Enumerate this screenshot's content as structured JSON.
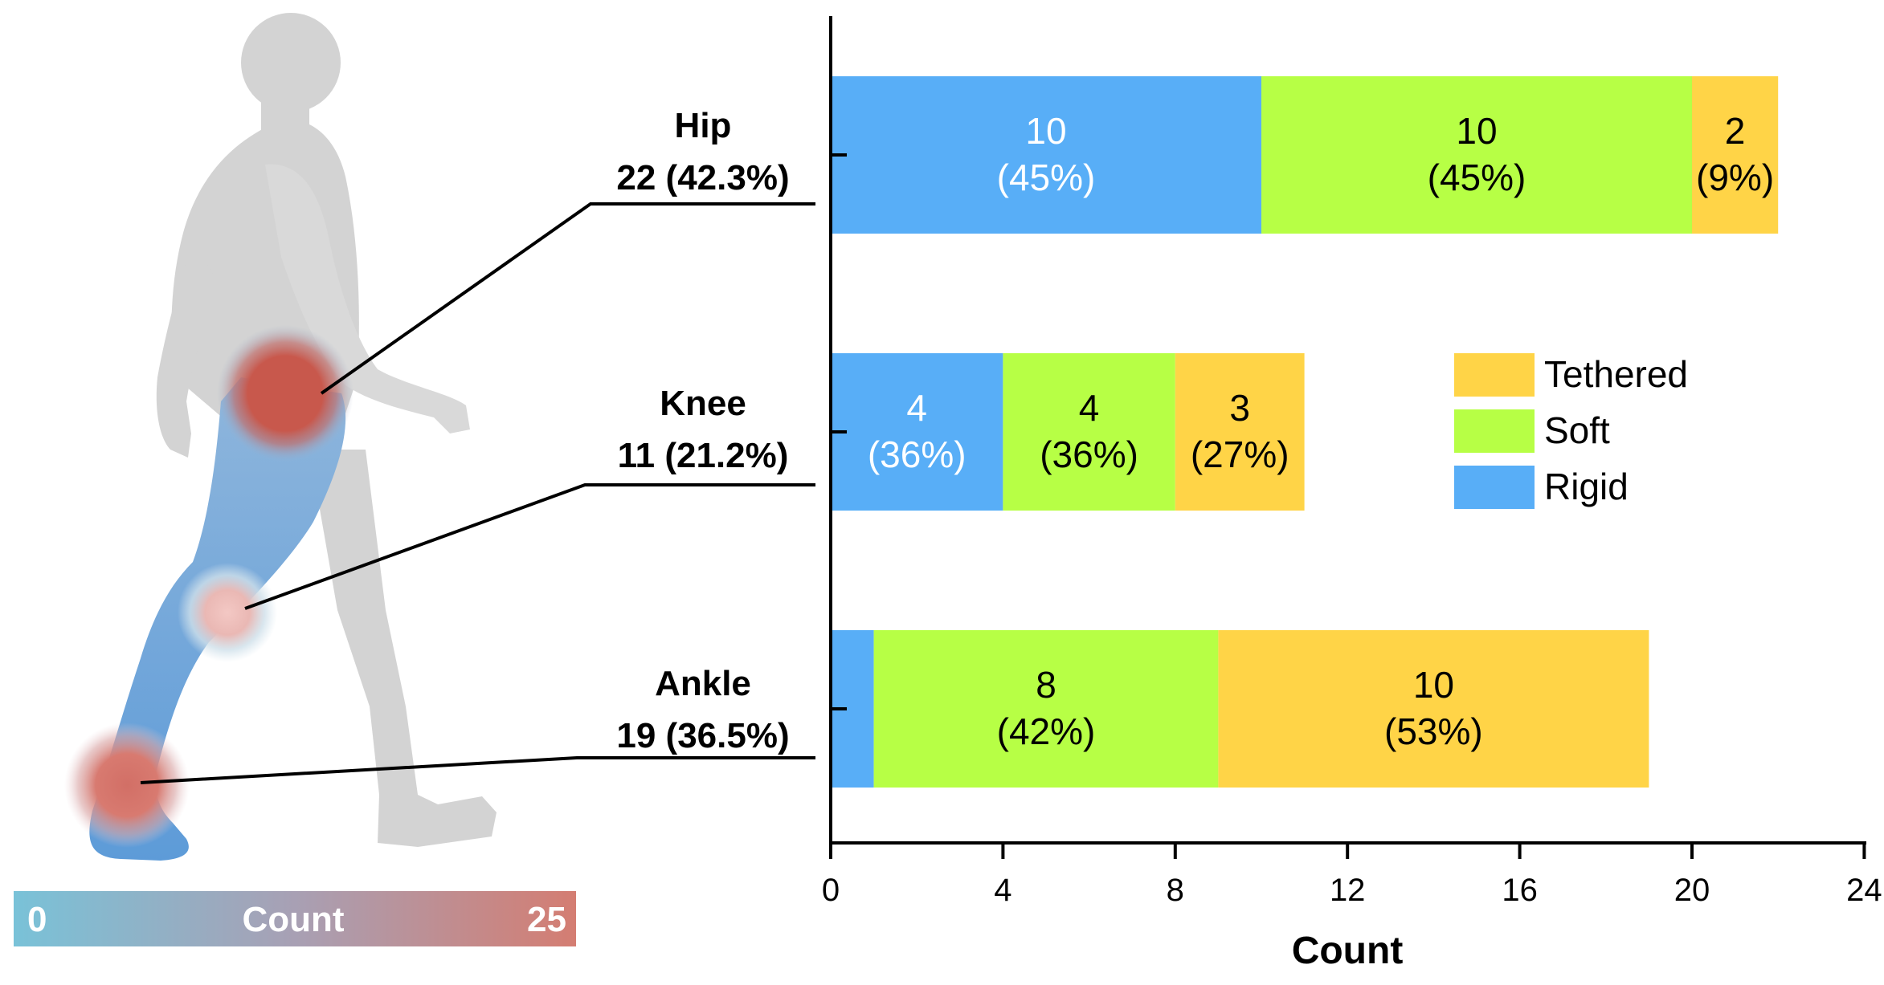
{
  "chart_data": {
    "type": "bar",
    "orientation": "horizontal",
    "stacked": true,
    "categories": [
      "Hip",
      "Knee",
      "Ankle"
    ],
    "category_totals": [
      "22 (42.3%)",
      "11 (21.2%)",
      "19 (36.5%)"
    ],
    "series": [
      {
        "name": "Rigid",
        "color": "#58aef7",
        "text_color": "#ffffff",
        "values": [
          10,
          4,
          1
        ],
        "labels": [
          [
            "10",
            "(45%)"
          ],
          [
            "4",
            "(36%)"
          ],
          null
        ]
      },
      {
        "name": "Soft",
        "color": "#b7ff45",
        "text_color": "#000000",
        "values": [
          10,
          4,
          8
        ],
        "labels": [
          [
            "10",
            "(45%)"
          ],
          [
            "4",
            "(36%)"
          ],
          [
            "8",
            "(42%)"
          ]
        ]
      },
      {
        "name": "Tethered",
        "color": "#ffd447",
        "text_color": "#000000",
        "values": [
          2,
          3,
          10
        ],
        "labels": [
          [
            "2",
            "(9%)"
          ],
          [
            "3",
            "(27%)"
          ],
          [
            "10",
            "(53%)"
          ]
        ]
      }
    ],
    "legend": [
      "Tethered",
      "Soft",
      "Rigid"
    ],
    "legend_position": "right",
    "xlabel": "Count",
    "xlim": [
      0,
      24
    ],
    "xticks": [
      "0",
      "4",
      "8",
      "12",
      "16",
      "20",
      "24"
    ],
    "grid": false
  },
  "colorbar": {
    "min_label": "0",
    "title": "Count",
    "max_label": "25",
    "min_color": "#79c2d8",
    "max_color": "#d47d72",
    "min": 0,
    "max": 25
  },
  "body_map": {
    "silhouette_color": "#d3d3d3",
    "leg_color": "#6fa3d7",
    "hotspots": [
      {
        "joint": "Hip",
        "value": 22
      },
      {
        "joint": "Knee",
        "value": 11
      },
      {
        "joint": "Ankle",
        "value": 19
      }
    ]
  }
}
